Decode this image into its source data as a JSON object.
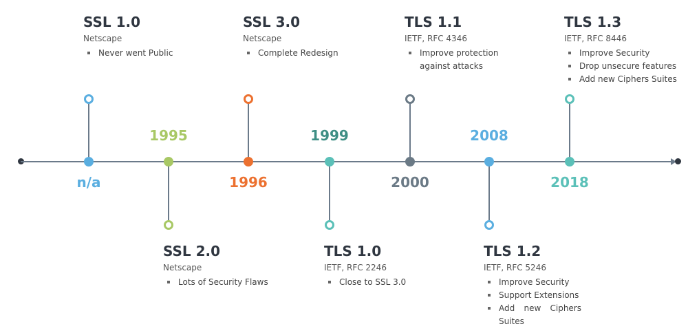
{
  "colors": {
    "axis": "#6b7a8a",
    "ssl1": "#5aaee0",
    "ssl2": "#a8c865",
    "ssl3": "#ec7130",
    "tls10": "#5bc0b8",
    "tls10_label": "#3e8e84",
    "tls11": "#6b7a86",
    "tls12": "#5aaee0",
    "tls13": "#5bc0b8"
  },
  "versions": [
    {
      "key": "ssl1",
      "title": "SSL 1.0",
      "org": "Netscape",
      "year": "n/a",
      "side": "top",
      "bullets": [
        "Never went Public"
      ]
    },
    {
      "key": "ssl2",
      "title": "SSL 2.0",
      "org": "Netscape",
      "year": "1995",
      "side": "bottom",
      "bullets": [
        "Lots of Security Flaws"
      ]
    },
    {
      "key": "ssl3",
      "title": "SSL 3.0",
      "org": "Netscape",
      "year": "1996",
      "side": "top",
      "bullets": [
        "Complete Redesign"
      ]
    },
    {
      "key": "tls10",
      "title": "TLS 1.0",
      "org": "IETF, RFC 2246",
      "year": "1999",
      "side": "bottom",
      "bullets": [
        "Close to SSL 3.0"
      ]
    },
    {
      "key": "tls11",
      "title": "TLS 1.1",
      "org": "IETF, RFC 4346",
      "year": "2000",
      "side": "top",
      "bullets": [
        "Improve protection against attacks"
      ]
    },
    {
      "key": "tls12",
      "title": "TLS 1.2",
      "org": "IETF, RFC 5246",
      "year": "2008",
      "side": "bottom",
      "bullets": [
        "Improve Security",
        "Support Extensions",
        "Add new Ciphers Suites"
      ]
    },
    {
      "key": "tls13",
      "title": "TLS 1.3",
      "org": "IETF, RFC 8446",
      "year": "2018",
      "side": "top",
      "bullets": [
        "Improve Security",
        "Drop unsecure features",
        "Add new Ciphers Suites"
      ]
    }
  ]
}
